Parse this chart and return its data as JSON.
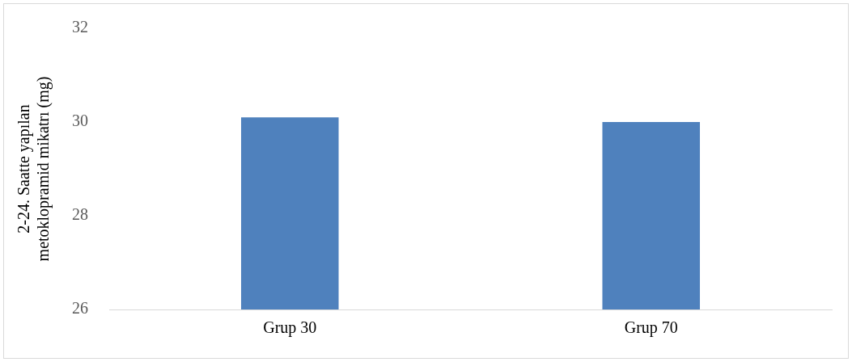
{
  "chart_data": {
    "type": "bar",
    "ylabel": "2-24. Saatte yapılan\nmetoklopramid mikatrı (mg)",
    "categories": [
      "Grup 30",
      "Grup 70"
    ],
    "values": [
      30.1,
      30.0
    ],
    "color": "#4f81bd",
    "ylim": [
      26,
      32
    ],
    "yticks": [
      26,
      28,
      30,
      32
    ],
    "grid": false
  }
}
